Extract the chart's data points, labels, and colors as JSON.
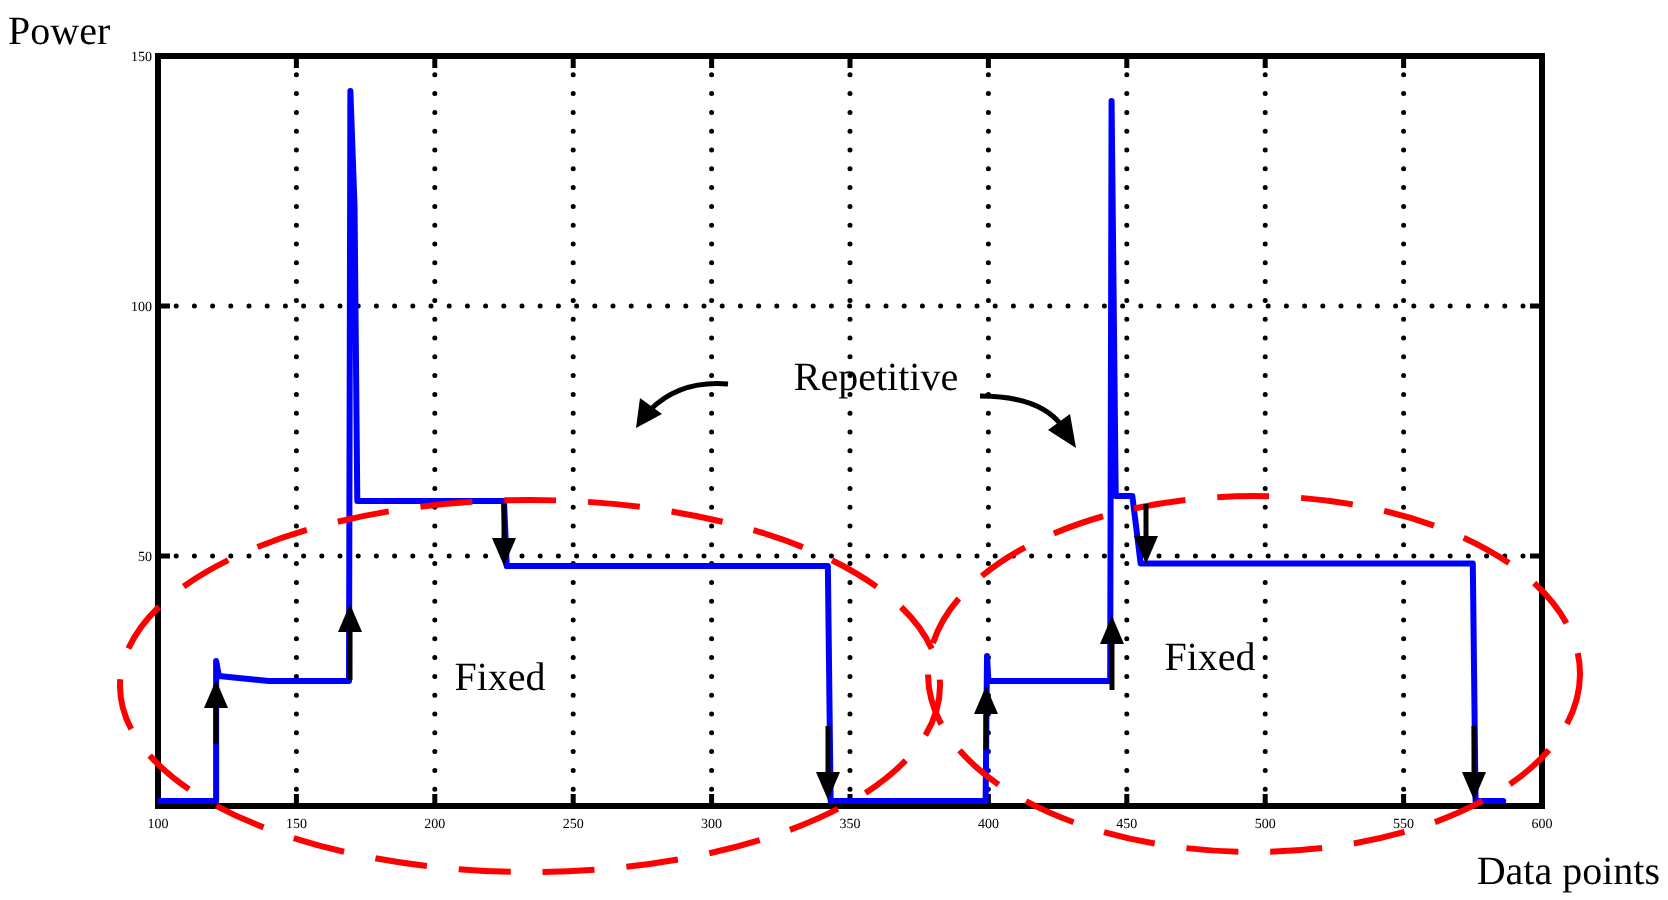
{
  "chart_data": {
    "type": "line",
    "xlabel": "Data points",
    "ylabel": "Power",
    "annotations": [
      "Repetitive",
      "Fixed",
      "Fixed"
    ],
    "series": [
      {
        "color": "#0000ff",
        "x": [
          100,
          121,
          121,
          122,
          140,
          169,
          169.5,
          171,
          172,
          225,
          226,
          342,
          343,
          399,
          399.5,
          400,
          444,
          444.5,
          446,
          452,
          455,
          575,
          576,
          586
        ],
        "values": [
          1,
          1,
          29,
          26,
          25,
          25,
          143,
          120,
          61,
          61,
          48,
          48,
          1,
          1,
          30,
          25,
          25,
          141,
          62,
          62,
          48.5,
          48.5,
          1,
          1
        ]
      }
    ],
    "xlim": [
      100,
      600
    ],
    "ylim": [
      0,
      150
    ],
    "xticks": [
      100,
      150,
      200,
      250,
      300,
      350,
      400,
      450,
      500,
      550,
      600
    ],
    "yticks": [
      {
        "value": 0,
        "label": null
      },
      50,
      100,
      150
    ],
    "grid": true,
    "line_style": "solid",
    "marker": "none"
  }
}
